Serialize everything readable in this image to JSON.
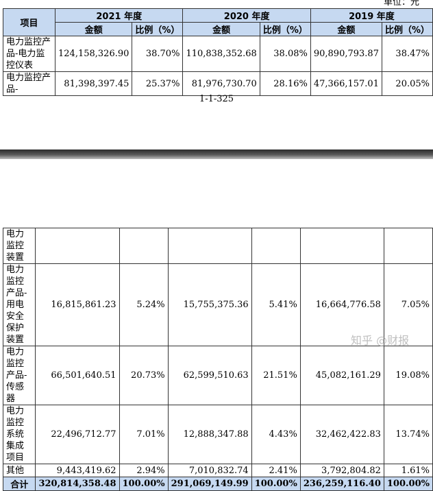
{
  "unit_label": "单位：元",
  "page_number": "1-1-325",
  "watermark": "知乎 @财报",
  "headers": {
    "item": "项目",
    "years": [
      "2021 年度",
      "2020 年度",
      "2019 年度"
    ],
    "amount": "金额",
    "ratio": "比例（%）"
  },
  "top_rows": [
    {
      "label": "电力监控产品-电力监控仪表",
      "values": [
        "124,158,326.90",
        "38.70%",
        "110,838,352.68",
        "38.08%",
        "90,890,793.87",
        "38.47%"
      ]
    },
    {
      "label": "电力监控产品-",
      "values": [
        "81,398,397.45",
        "25.37%",
        "81,976,730.70",
        "28.16%",
        "47,366,157.01",
        "20.05%"
      ]
    }
  ],
  "bottom_rows": [
    {
      "label": "电力监控装置",
      "values": [
        "",
        "",
        "",
        "",
        "",
        ""
      ]
    },
    {
      "label": "电力监控产品-用电安全保护装置",
      "values": [
        "16,815,861.23",
        "5.24%",
        "15,755,375.36",
        "5.41%",
        "16,664,776.58",
        "7.05%"
      ]
    },
    {
      "label": "电力监控产品-传感器",
      "values": [
        "66,501,640.51",
        "20.73%",
        "62,599,510.63",
        "21.51%",
        "45,082,161.29",
        "19.08%"
      ]
    },
    {
      "label": "电力监控系统集成项目",
      "values": [
        "22,496,712.77",
        "7.01%",
        "12,888,347.88",
        "4.43%",
        "32,462,422.83",
        "13.74%"
      ]
    },
    {
      "label": "其他",
      "values": [
        "9,443,419.62",
        "2.94%",
        "7,010,832.74",
        "2.41%",
        "3,792,804.82",
        "1.61%"
      ]
    }
  ],
  "total": {
    "label": "合计",
    "values": [
      "320,814,358.48",
      "100.00%",
      "291,069,149.99",
      "100.00%",
      "236,259,116.40",
      "100.00%"
    ]
  }
}
